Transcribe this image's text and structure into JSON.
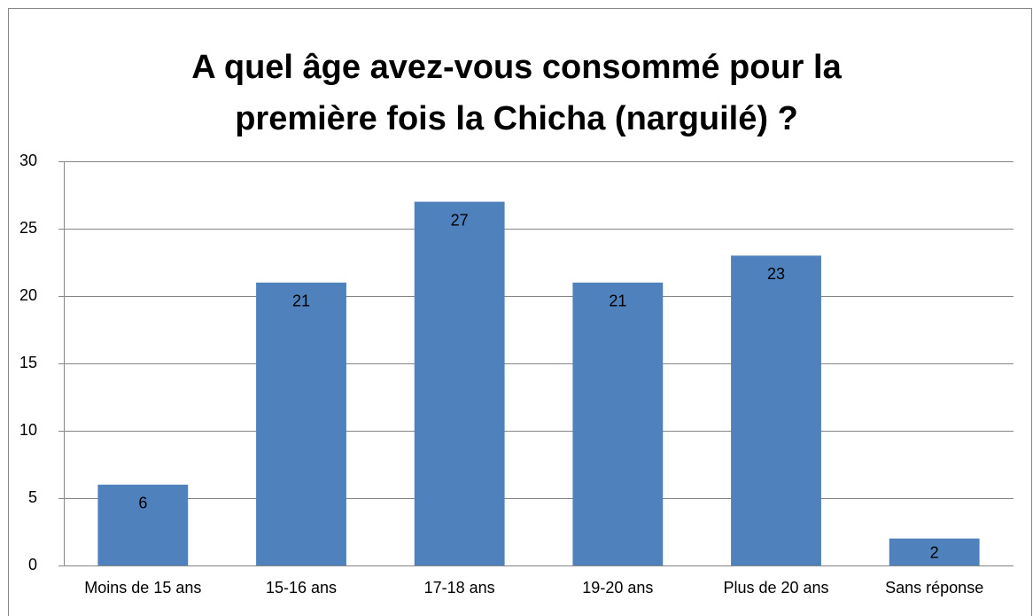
{
  "chart_data": {
    "type": "bar",
    "title": [
      "A quel âge avez-vous consommé pour la",
      "première fois la Chicha (narguilé) ?"
    ],
    "categories": [
      "Moins de 15 ans",
      "15-16 ans",
      "17-18 ans",
      "19-20 ans",
      "Plus de 20 ans",
      "Sans réponse"
    ],
    "values": [
      6,
      21,
      27,
      21,
      23,
      2
    ],
    "color": "#4f81bd",
    "ylim": [
      0,
      30
    ],
    "yticks": [
      0,
      5,
      10,
      15,
      20,
      25,
      30
    ],
    "grid": true
  }
}
